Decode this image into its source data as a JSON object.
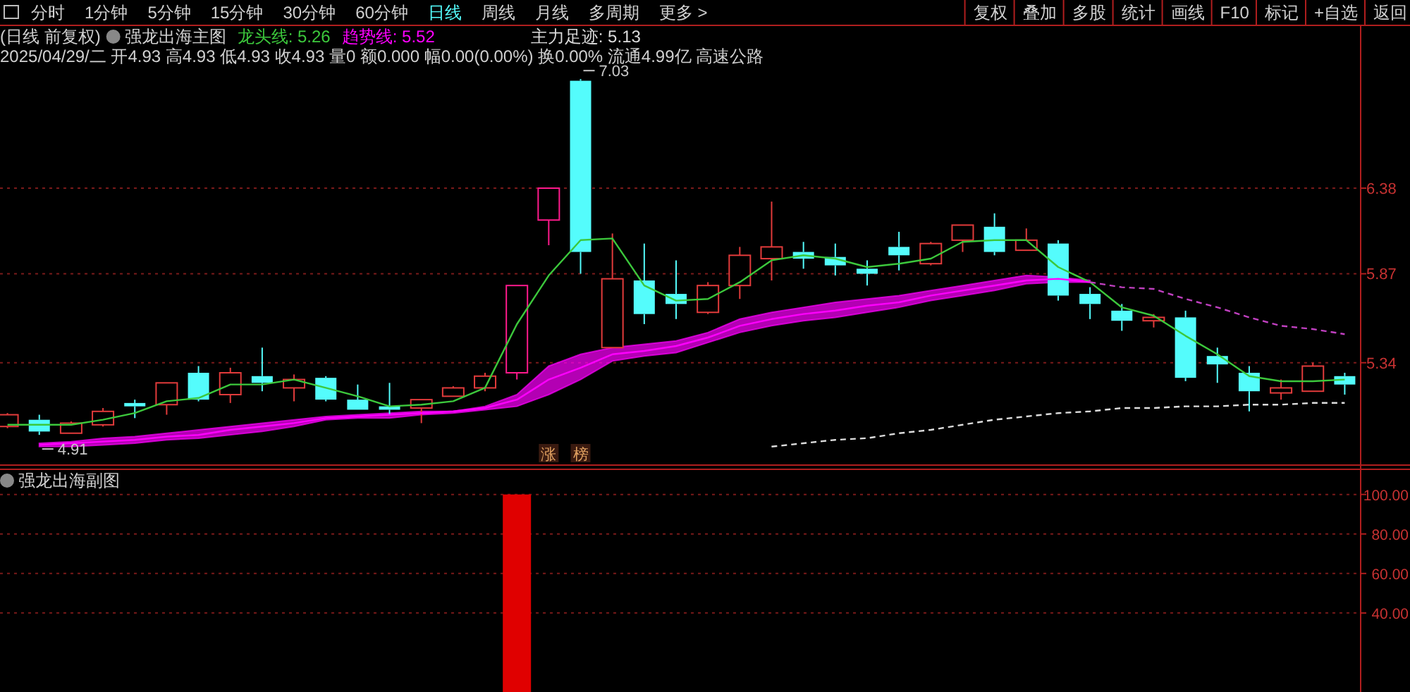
{
  "chart_data": [
    {
      "type": "candlestick",
      "title": "强龙出海主图",
      "subtitle": "2025/04/29/二 开4.93 高4.93 低4.93 收4.93 量0 额0.000 幅0.00(0.00%) 换0.00% 流通4.99亿 高速公路",
      "categories": [
        null,
        null,
        null,
        null,
        null,
        null,
        null,
        null,
        null,
        null,
        null,
        null,
        null,
        null,
        null,
        null,
        null,
        null,
        null,
        null,
        null,
        null,
        null,
        null,
        null,
        null,
        null,
        null,
        null,
        null,
        null,
        null,
        null,
        null,
        null,
        null,
        null,
        null,
        null,
        null,
        null,
        null,
        null
      ],
      "ohlc": [
        [
          4.96,
          5.04,
          4.95,
          5.03
        ],
        [
          5.0,
          5.03,
          4.91,
          4.93
        ],
        [
          4.92,
          4.99,
          4.92,
          4.98
        ],
        [
          4.97,
          5.07,
          4.96,
          5.05
        ],
        [
          5.1,
          5.12,
          5.01,
          5.08
        ],
        [
          5.09,
          5.22,
          5.03,
          5.22
        ],
        [
          5.28,
          5.32,
          5.11,
          5.12
        ],
        [
          5.15,
          5.31,
          5.1,
          5.28
        ],
        [
          5.26,
          5.43,
          5.17,
          5.22
        ],
        [
          5.19,
          5.27,
          5.11,
          5.24
        ],
        [
          5.25,
          5.26,
          5.11,
          5.12
        ],
        [
          5.12,
          5.21,
          5.06,
          5.06
        ],
        [
          5.08,
          5.22,
          5.03,
          5.06
        ],
        [
          5.07,
          5.12,
          4.98,
          5.12
        ],
        [
          5.14,
          5.2,
          5.14,
          5.19
        ],
        [
          5.19,
          5.28,
          5.17,
          5.26
        ],
        [
          5.28,
          5.8,
          5.24,
          5.8
        ],
        [
          6.19,
          6.38,
          6.04,
          6.38
        ],
        [
          7.02,
          7.03,
          5.87,
          6.0
        ],
        [
          5.43,
          6.11,
          5.43,
          5.84
        ],
        [
          5.83,
          6.05,
          5.57,
          5.63
        ],
        [
          5.75,
          5.95,
          5.6,
          5.69
        ],
        [
          5.64,
          5.82,
          5.63,
          5.8
        ],
        [
          5.8,
          6.03,
          5.72,
          5.98
        ],
        [
          5.96,
          6.3,
          5.83,
          6.03
        ],
        [
          6.0,
          6.06,
          5.9,
          5.96
        ],
        [
          5.97,
          6.05,
          5.86,
          5.92
        ],
        [
          5.9,
          5.95,
          5.8,
          5.87
        ],
        [
          6.03,
          6.12,
          5.89,
          5.98
        ],
        [
          5.93,
          6.06,
          5.92,
          6.05
        ],
        [
          6.07,
          6.16,
          6.0,
          6.16
        ],
        [
          6.15,
          6.23,
          5.98,
          6.0
        ],
        [
          6.01,
          6.14,
          6.01,
          6.07
        ],
        [
          6.05,
          6.07,
          5.71,
          5.74
        ],
        [
          5.75,
          5.79,
          5.6,
          5.69
        ],
        [
          5.65,
          5.69,
          5.53,
          5.59
        ],
        [
          5.59,
          5.63,
          5.55,
          5.61
        ],
        [
          5.61,
          5.65,
          5.23,
          5.25
        ],
        [
          5.38,
          5.43,
          5.22,
          5.33
        ],
        [
          5.28,
          5.32,
          5.05,
          5.17
        ],
        [
          5.16,
          5.24,
          5.12,
          5.19
        ],
        [
          5.17,
          5.34,
          5.17,
          5.32
        ],
        [
          5.26,
          5.28,
          5.15,
          5.21
        ]
      ],
      "colors": [
        "#e23b3b",
        "#54fcfc",
        "#e23b3b",
        "#e23b3b",
        "#54fcfc",
        "#e23b3b",
        "#54fcfc",
        "#e23b3b",
        "#54fcfc",
        "#e23b3b",
        "#54fcfc",
        "#54fcfc",
        "#54fcfc",
        "#e23b3b",
        "#e23b3b",
        "#e23b3b",
        "#ff1a8c",
        "#ff1a8c",
        "#54fcfc",
        "#e23b3b",
        "#54fcfc",
        "#54fcfc",
        "#e23b3b",
        "#e23b3b",
        "#e23b3b",
        "#54fcfc",
        "#54fcfc",
        "#54fcfc",
        "#54fcfc",
        "#e23b3b",
        "#e23b3b",
        "#54fcfc",
        "#e23b3b",
        "#54fcfc",
        "#54fcfc",
        "#54fcfc",
        "#e23b3b",
        "#54fcfc",
        "#54fcfc",
        "#54fcfc",
        "#e23b3b",
        "#e23b3b",
        "#54fcfc"
      ],
      "series": [
        {
          "type": "line",
          "name": "龙头线: 5.26",
          "color": "#3cc83c",
          "values": [
            4.97,
            4.97,
            4.97,
            5.0,
            5.04,
            5.11,
            5.13,
            5.21,
            5.21,
            5.24,
            5.19,
            5.14,
            5.08,
            5.09,
            5.11,
            5.19,
            5.57,
            5.86,
            6.07,
            6.08,
            5.8,
            5.71,
            5.72,
            5.82,
            5.95,
            5.98,
            5.96,
            5.91,
            5.93,
            5.96,
            6.06,
            6.07,
            6.07,
            5.91,
            5.82,
            5.67,
            5.62,
            5.5,
            5.39,
            5.26,
            5.23,
            5.23,
            5.24
          ]
        },
        {
          "type": "line",
          "name": "趋势线: 5.52",
          "color": "#ff00ff",
          "values": [
            null,
            4.85,
            4.86,
            4.87,
            4.88,
            4.9,
            4.91,
            4.94,
            4.96,
            4.98,
            5.01,
            5.02,
            5.03,
            5.04,
            5.05,
            5.07,
            5.12,
            5.24,
            5.31,
            5.39,
            5.41,
            5.44,
            5.49,
            5.56,
            5.6,
            5.63,
            5.65,
            5.68,
            5.7,
            5.74,
            5.77,
            5.8,
            5.83,
            5.84,
            5.82,
            null,
            null,
            null,
            null,
            null,
            null,
            null,
            null
          ],
          "lower": [
            null,
            4.84,
            4.84,
            4.85,
            4.86,
            4.88,
            4.89,
            4.91,
            4.93,
            4.96,
            5.0,
            5.01,
            5.01,
            5.03,
            5.04,
            5.06,
            5.08,
            5.15,
            5.24,
            5.35,
            5.38,
            5.4,
            5.46,
            5.52,
            5.56,
            5.59,
            5.61,
            5.64,
            5.67,
            5.71,
            5.74,
            5.77,
            5.81,
            5.82,
            5.82,
            null,
            null,
            null,
            null,
            null,
            null,
            null,
            null
          ],
          "upper": [
            null,
            4.86,
            4.87,
            4.89,
            4.9,
            4.92,
            4.94,
            4.96,
            4.98,
            5.0,
            5.02,
            5.03,
            5.04,
            5.05,
            5.05,
            5.08,
            5.15,
            5.32,
            5.39,
            5.43,
            5.45,
            5.47,
            5.52,
            5.6,
            5.64,
            5.67,
            5.7,
            5.72,
            5.74,
            5.77,
            5.8,
            5.83,
            5.86,
            5.85,
            5.83,
            null,
            null,
            null,
            null,
            null,
            null,
            null,
            null
          ]
        },
        {
          "type": "line",
          "color": "#c040c0",
          "line_style": "dashed",
          "values": [
            null,
            null,
            null,
            null,
            null,
            null,
            null,
            null,
            null,
            null,
            null,
            null,
            null,
            null,
            null,
            null,
            null,
            null,
            null,
            null,
            null,
            null,
            null,
            null,
            null,
            null,
            null,
            null,
            null,
            null,
            null,
            null,
            null,
            null,
            5.82,
            5.79,
            5.78,
            5.72,
            5.67,
            5.61,
            5.56,
            5.54,
            5.51
          ]
        },
        {
          "type": "line",
          "name": "主力足迹: 5.13",
          "color": "#dcdcdc",
          "line_style": "dashed",
          "values": [
            null,
            null,
            null,
            null,
            null,
            null,
            null,
            null,
            null,
            null,
            null,
            null,
            null,
            null,
            null,
            null,
            null,
            null,
            null,
            null,
            null,
            null,
            null,
            null,
            4.84,
            4.86,
            4.88,
            4.89,
            4.92,
            4.94,
            4.97,
            5.0,
            5.02,
            5.04,
            5.05,
            5.07,
            5.07,
            5.08,
            5.08,
            5.09,
            5.09,
            5.1,
            5.1
          ]
        }
      ],
      "ylim": [
        4.73,
        7.35
      ],
      "yticks": [
        5.34,
        5.87,
        6.38
      ],
      "grid": "y",
      "legend": "top left",
      "annotations": [
        "分时",
        "1分钟",
        "5分钟",
        "15分钟",
        "30分钟",
        "60分钟",
        "日线",
        "周线",
        "月线",
        "多周期",
        "更多 >",
        "复权",
        "叠加",
        "多股",
        "统计",
        "画线",
        "F10",
        "标记",
        "+自选",
        "返回",
        "(日线 前复权)",
        "涨",
        "榜",
        "7.03",
        "4.91"
      ]
    },
    {
      "type": "bar",
      "title": "强龙出海副图",
      "categories": [
        null,
        null,
        null,
        null,
        null,
        null,
        null,
        null,
        null,
        null,
        null,
        null,
        null,
        null,
        null,
        null,
        null,
        null,
        null,
        null,
        null,
        null,
        null,
        null,
        null,
        null,
        null,
        null,
        null,
        null,
        null,
        null,
        null,
        null,
        null,
        null,
        null,
        null,
        null,
        null,
        null,
        null,
        null
      ],
      "values": [
        null,
        null,
        null,
        null,
        null,
        null,
        null,
        null,
        null,
        null,
        null,
        null,
        null,
        null,
        null,
        null,
        100,
        null,
        null,
        null,
        null,
        null,
        null,
        null,
        null,
        null,
        null,
        null,
        null,
        null,
        null,
        null,
        null,
        null,
        null,
        null,
        null,
        null,
        null,
        null,
        null,
        null,
        null
      ],
      "color": "#e00000",
      "ylim": [
        0,
        112
      ],
      "yticks": [
        {
          "value": 40,
          "label": "40.00"
        },
        {
          "value": 60,
          "label": "60.00"
        },
        {
          "value": 80,
          "label": "80.00"
        },
        {
          "value": 100,
          "label": "100.00"
        }
      ],
      "grid": "y"
    }
  ]
}
